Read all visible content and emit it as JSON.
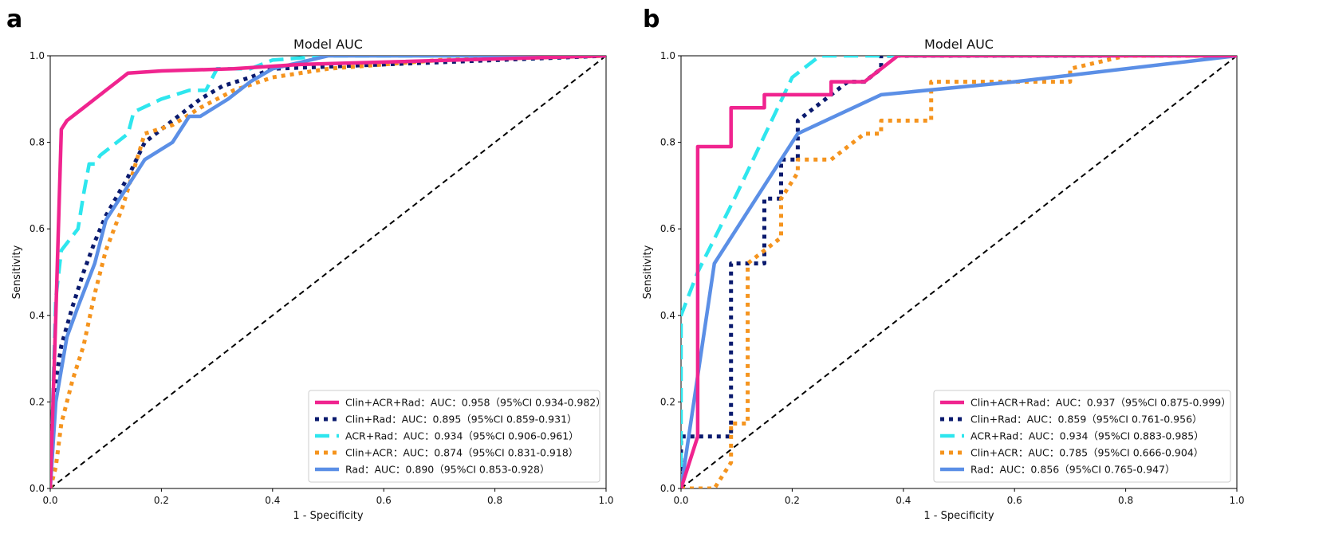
{
  "panels": [
    {
      "letter": "a"
    },
    {
      "letter": "b"
    }
  ],
  "chart_data": [
    {
      "type": "line",
      "title": "Model AUC",
      "xlabel": "1 - Specificity",
      "ylabel": "Sensitivity",
      "xlim": [
        0,
        1
      ],
      "ylim": [
        0,
        1
      ],
      "xticks": [
        "0.0",
        "0.2",
        "0.4",
        "0.6",
        "0.8",
        "1.0"
      ],
      "yticks": [
        "0.0",
        "0.2",
        "0.4",
        "0.6",
        "0.8",
        "1.0"
      ],
      "legend_position": "lower-right",
      "series": [
        {
          "name": "Clin+ACR+Rad",
          "label": "Clin+ACR+Rad：AUC：0.958（95%CI 0.934-0.982）",
          "color": "#f0248f",
          "style": "solid",
          "x": [
            0,
            0.01,
            0.02,
            0.03,
            0.06,
            0.1,
            0.12,
            0.14,
            0.2,
            0.33,
            0.45,
            1.0
          ],
          "y": [
            0,
            0.4,
            0.83,
            0.85,
            0.88,
            0.92,
            0.94,
            0.96,
            0.965,
            0.97,
            0.98,
            1.0
          ]
        },
        {
          "name": "Clin+Rad",
          "label": "Clin+Rad：AUC：0.895（95%CI 0.859-0.931）",
          "color": "#0a1a6e",
          "style": "dotted",
          "x": [
            0,
            0.01,
            0.02,
            0.04,
            0.06,
            0.08,
            0.1,
            0.14,
            0.17,
            0.22,
            0.27,
            0.31,
            0.36,
            0.4,
            1.0
          ],
          "y": [
            0,
            0.25,
            0.33,
            0.42,
            0.5,
            0.57,
            0.63,
            0.72,
            0.8,
            0.85,
            0.9,
            0.93,
            0.95,
            0.97,
            1.0
          ]
        },
        {
          "name": "ACR+Rad",
          "label": "ACR+Rad：AUC：0.934（95%CI 0.906-0.961）",
          "color": "#2ee6ee",
          "style": "dashed",
          "x": [
            0,
            0.01,
            0.02,
            0.05,
            0.06,
            0.07,
            0.08,
            0.09,
            0.12,
            0.14,
            0.15,
            0.2,
            0.25,
            0.28,
            0.3,
            0.36,
            0.4,
            0.5,
            1.0
          ],
          "y": [
            0,
            0.44,
            0.55,
            0.6,
            0.68,
            0.75,
            0.75,
            0.77,
            0.8,
            0.82,
            0.87,
            0.9,
            0.92,
            0.92,
            0.97,
            0.97,
            0.99,
            1.0,
            1.0
          ]
        },
        {
          "name": "Clin+ACR",
          "label": "Clin+ACR：AUC：0.874（95%CI 0.831-0.918）",
          "color": "#f5941e",
          "style": "dotted",
          "x": [
            0,
            0.01,
            0.02,
            0.04,
            0.06,
            0.08,
            0.1,
            0.13,
            0.17,
            0.22,
            0.27,
            0.33,
            0.4,
            0.5,
            0.7,
            1.0
          ],
          "y": [
            0,
            0.05,
            0.15,
            0.25,
            0.33,
            0.45,
            0.55,
            0.65,
            0.82,
            0.84,
            0.88,
            0.92,
            0.95,
            0.97,
            0.99,
            1.0
          ]
        },
        {
          "name": "Rad",
          "label": "Rad：AUC：0.890（95%CI 0.853-0.928）",
          "color": "#5b8fe6",
          "style": "solid",
          "x": [
            0,
            0.01,
            0.03,
            0.05,
            0.08,
            0.1,
            0.13,
            0.17,
            0.22,
            0.25,
            0.27,
            0.32,
            0.36,
            0.4,
            0.5,
            1.0
          ],
          "y": [
            0,
            0.2,
            0.35,
            0.42,
            0.52,
            0.62,
            0.68,
            0.76,
            0.8,
            0.86,
            0.86,
            0.9,
            0.94,
            0.97,
            1.0,
            1.0
          ]
        }
      ]
    },
    {
      "type": "line",
      "title": "Model AUC",
      "xlabel": "1 - Specificity",
      "ylabel": "Sensitivity",
      "xlim": [
        0,
        1
      ],
      "ylim": [
        0,
        1
      ],
      "xticks": [
        "0.0",
        "0.2",
        "0.4",
        "0.6",
        "0.8",
        "1.0"
      ],
      "yticks": [
        "0.0",
        "0.2",
        "0.4",
        "0.6",
        "0.8",
        "1.0"
      ],
      "legend_position": "lower-right",
      "series": [
        {
          "name": "Clin+ACR+Rad",
          "label": "Clin+ACR+Rad：AUC：0.937（95%CI 0.875-0.999）",
          "color": "#f0248f",
          "style": "solid",
          "x": [
            0,
            0.03,
            0.03,
            0.05,
            0.09,
            0.09,
            0.15,
            0.15,
            0.21,
            0.27,
            0.27,
            0.33,
            0.39,
            0.39,
            1.0
          ],
          "y": [
            0,
            0.12,
            0.79,
            0.79,
            0.79,
            0.88,
            0.88,
            0.91,
            0.91,
            0.91,
            0.94,
            0.94,
            1.0,
            1.0,
            1.0
          ]
        },
        {
          "name": "Clin+Rad",
          "label": "Clin+Rad：AUC：0.859（95%CI 0.761-0.956）",
          "color": "#0a1a6e",
          "style": "dotted",
          "x": [
            0,
            0.0,
            0.09,
            0.09,
            0.15,
            0.15,
            0.18,
            0.18,
            0.21,
            0.21,
            0.24,
            0.27,
            0.3,
            0.33,
            0.36,
            0.36,
            1.0
          ],
          "y": [
            0,
            0.12,
            0.12,
            0.52,
            0.52,
            0.67,
            0.67,
            0.76,
            0.76,
            0.85,
            0.88,
            0.91,
            0.94,
            0.94,
            0.97,
            1.0,
            1.0
          ]
        },
        {
          "name": "ACR+Rad",
          "label": "ACR+Rad：AUC：0.934（95%CI 0.883-0.985）",
          "color": "#2ee6ee",
          "style": "dashed",
          "x": [
            0,
            0.0,
            0.03,
            0.1,
            0.2,
            0.25,
            1.0
          ],
          "y": [
            0,
            0.4,
            0.5,
            0.68,
            0.95,
            1.0,
            1.0
          ]
        },
        {
          "name": "Clin+ACR",
          "label": "Clin+ACR：AUC：0.785（95%CI 0.666-0.904）",
          "color": "#f5941e",
          "style": "dotted",
          "x": [
            0,
            0.06,
            0.09,
            0.09,
            0.12,
            0.12,
            0.15,
            0.15,
            0.18,
            0.18,
            0.21,
            0.21,
            0.27,
            0.3,
            0.33,
            0.36,
            0.36,
            0.45,
            0.45,
            0.55,
            0.7,
            0.7,
            0.8,
            1.0
          ],
          "y": [
            0,
            0.0,
            0.06,
            0.15,
            0.15,
            0.52,
            0.55,
            0.55,
            0.58,
            0.67,
            0.73,
            0.76,
            0.76,
            0.79,
            0.82,
            0.82,
            0.85,
            0.85,
            0.94,
            0.94,
            0.94,
            0.97,
            1.0,
            1.0
          ]
        },
        {
          "name": "Rad",
          "label": "Rad：AUC：0.856（95%CI 0.765-0.947）",
          "color": "#5b8fe6",
          "style": "solid",
          "x": [
            0,
            0.06,
            0.21,
            0.36,
            0.6,
            1.0
          ],
          "y": [
            0,
            0.52,
            0.82,
            0.91,
            0.94,
            1.0
          ]
        }
      ]
    }
  ]
}
